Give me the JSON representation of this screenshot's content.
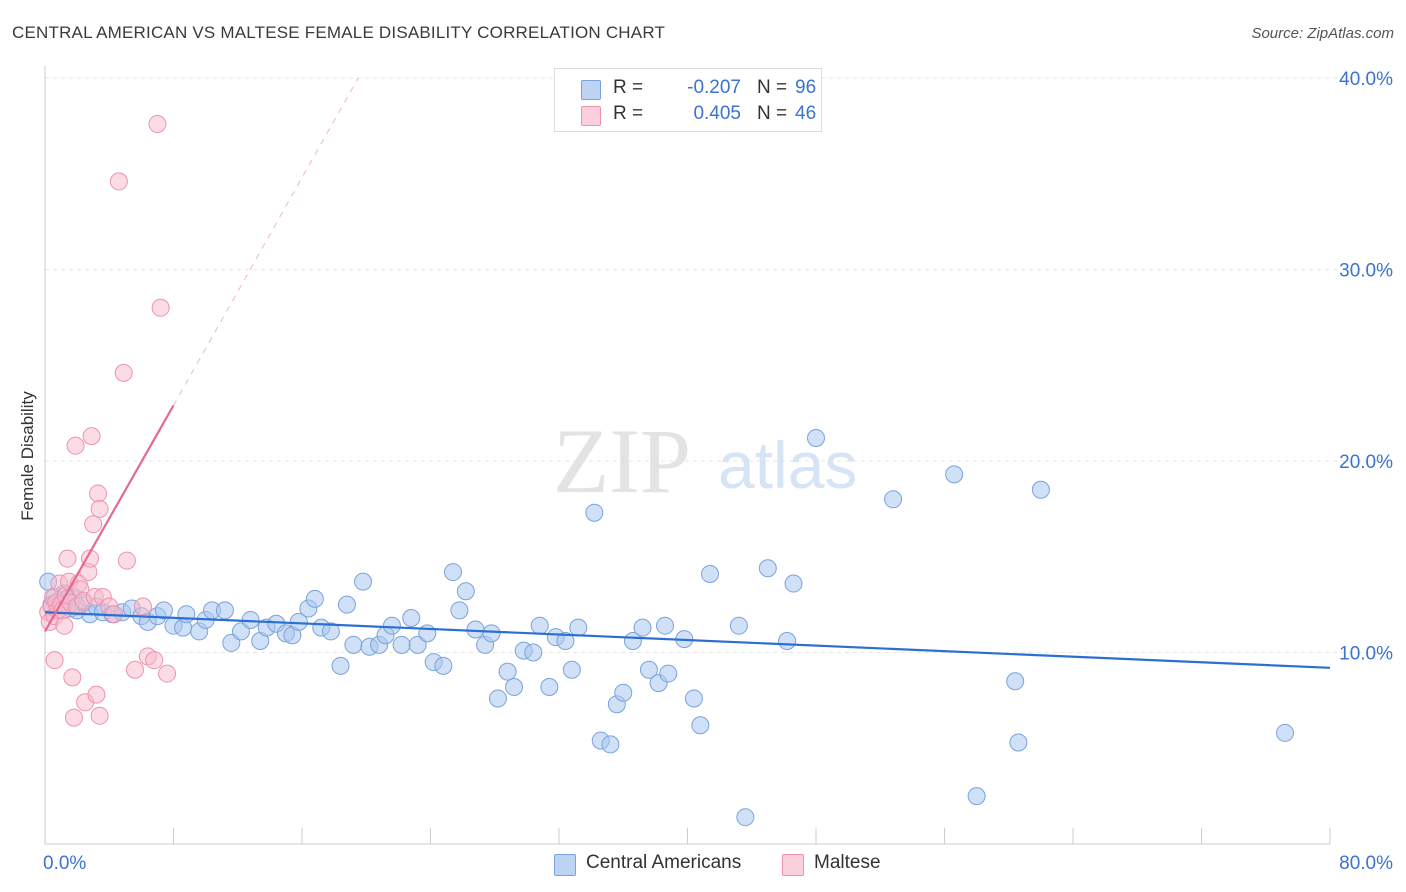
{
  "title": "CENTRAL AMERICAN VS MALTESE FEMALE DISABILITY CORRELATION CHART",
  "source": "Source: ZipAtlas.com",
  "watermark": {
    "zip": "ZIP",
    "atlas": "atlas"
  },
  "legend": {
    "r_label": "R =",
    "n_label": "N =",
    "central": {
      "r": "-0.207",
      "n": "96"
    },
    "maltese": {
      "r": "0.405",
      "n": "46"
    }
  },
  "colors": {
    "central_fill": "#a9c7ee",
    "central_stroke": "#7aa3dc",
    "central_line": "#2b6fd0",
    "maltese_fill": "#f7b9cb",
    "maltese_stroke": "#ee93ae",
    "maltese_line": "#e46a95",
    "tick_label": "#3b73d1"
  },
  "chart_data": {
    "type": "scatter",
    "title": "CENTRAL AMERICAN VS MALTESE FEMALE DISABILITY CORRELATION CHART",
    "xlabel": "",
    "ylabel": "Female Disability",
    "xlim": [
      0,
      80
    ],
    "ylim": [
      0,
      40
    ],
    "x_tick_labels": [
      "0.0%",
      "80.0%"
    ],
    "y_ticks": [
      10,
      20,
      30,
      40
    ],
    "y_tick_labels": [
      "10.0%",
      "20.0%",
      "30.0%",
      "40.0%"
    ],
    "grid": true,
    "legend_position": "top-center",
    "series": [
      {
        "name": "Central Americans",
        "r": -0.207,
        "n": 96,
        "trend": {
          "x": [
            0,
            80
          ],
          "y": [
            12.1,
            9.2
          ]
        },
        "points": [
          [
            0.2,
            13.7
          ],
          [
            0.4,
            12.5
          ],
          [
            0.6,
            12.9
          ],
          [
            0.8,
            12.4
          ],
          [
            1.0,
            12.6
          ],
          [
            1.2,
            13.1
          ],
          [
            1.4,
            12.8
          ],
          [
            1.6,
            12.3
          ],
          [
            1.8,
            12.9
          ],
          [
            2.0,
            12.2
          ],
          [
            2.4,
            12.6
          ],
          [
            2.8,
            12.0
          ],
          [
            3.2,
            12.4
          ],
          [
            3.6,
            12.1
          ],
          [
            4.2,
            12.0
          ],
          [
            4.8,
            12.1
          ],
          [
            5.4,
            12.3
          ],
          [
            6.0,
            11.9
          ],
          [
            6.4,
            11.6
          ],
          [
            7.0,
            11.9
          ],
          [
            7.4,
            12.2
          ],
          [
            8.0,
            11.4
          ],
          [
            8.6,
            11.3
          ],
          [
            8.8,
            12.0
          ],
          [
            9.6,
            11.1
          ],
          [
            10.0,
            11.7
          ],
          [
            10.4,
            12.2
          ],
          [
            11.2,
            12.2
          ],
          [
            11.6,
            10.5
          ],
          [
            12.2,
            11.1
          ],
          [
            12.8,
            11.7
          ],
          [
            13.4,
            10.6
          ],
          [
            13.8,
            11.3
          ],
          [
            14.4,
            11.5
          ],
          [
            15.0,
            11.0
          ],
          [
            15.4,
            10.9
          ],
          [
            15.8,
            11.6
          ],
          [
            16.4,
            12.3
          ],
          [
            16.8,
            12.8
          ],
          [
            17.2,
            11.3
          ],
          [
            17.8,
            11.1
          ],
          [
            18.4,
            9.3
          ],
          [
            18.8,
            12.5
          ],
          [
            19.2,
            10.4
          ],
          [
            19.8,
            13.7
          ],
          [
            20.2,
            10.3
          ],
          [
            20.8,
            10.4
          ],
          [
            21.2,
            10.9
          ],
          [
            21.6,
            11.4
          ],
          [
            22.2,
            10.4
          ],
          [
            22.8,
            11.8
          ],
          [
            23.2,
            10.4
          ],
          [
            23.8,
            11.0
          ],
          [
            24.2,
            9.5
          ],
          [
            24.8,
            9.3
          ],
          [
            25.4,
            14.2
          ],
          [
            25.8,
            12.2
          ],
          [
            26.2,
            13.2
          ],
          [
            26.8,
            11.2
          ],
          [
            27.4,
            10.4
          ],
          [
            27.8,
            11.0
          ],
          [
            28.2,
            7.6
          ],
          [
            28.8,
            9.0
          ],
          [
            29.2,
            8.2
          ],
          [
            29.8,
            10.1
          ],
          [
            30.4,
            10.0
          ],
          [
            30.8,
            11.4
          ],
          [
            31.4,
            8.2
          ],
          [
            31.8,
            10.8
          ],
          [
            32.4,
            10.6
          ],
          [
            32.8,
            9.1
          ],
          [
            33.2,
            11.3
          ],
          [
            34.2,
            17.3
          ],
          [
            34.6,
            5.4
          ],
          [
            35.2,
            5.2
          ],
          [
            35.6,
            7.3
          ],
          [
            36.0,
            7.9
          ],
          [
            36.6,
            10.6
          ],
          [
            37.2,
            11.3
          ],
          [
            37.6,
            9.1
          ],
          [
            38.2,
            8.4
          ],
          [
            38.6,
            11.4
          ],
          [
            38.8,
            8.9
          ],
          [
            39.8,
            10.7
          ],
          [
            40.4,
            7.6
          ],
          [
            40.8,
            6.2
          ],
          [
            41.4,
            14.1
          ],
          [
            43.2,
            11.4
          ],
          [
            43.6,
            1.4
          ],
          [
            45.0,
            14.4
          ],
          [
            46.2,
            10.6
          ],
          [
            46.6,
            13.6
          ],
          [
            48.0,
            21.2
          ],
          [
            52.8,
            18.0
          ],
          [
            56.6,
            19.3
          ],
          [
            58.0,
            2.5
          ],
          [
            60.4,
            8.5
          ],
          [
            60.6,
            5.3
          ],
          [
            62.0,
            18.5
          ],
          [
            77.2,
            5.8
          ]
        ]
      },
      {
        "name": "Maltese",
        "r": 0.405,
        "n": 46,
        "trend": {
          "x": [
            0,
            8
          ],
          "y": [
            11.1,
            22.9
          ]
        },
        "trend_extended": {
          "x": [
            8,
            19.5
          ],
          "y": [
            22.9,
            40.0
          ]
        },
        "points": [
          [
            0.2,
            12.1
          ],
          [
            0.3,
            11.6
          ],
          [
            0.4,
            12.4
          ],
          [
            0.5,
            12.9
          ],
          [
            0.6,
            11.9
          ],
          [
            0.7,
            12.6
          ],
          [
            0.8,
            12.2
          ],
          [
            0.9,
            13.6
          ],
          [
            1.0,
            12.5
          ],
          [
            1.1,
            12.2
          ],
          [
            1.2,
            11.4
          ],
          [
            1.3,
            13.0
          ],
          [
            1.4,
            14.9
          ],
          [
            1.5,
            13.7
          ],
          [
            1.6,
            12.6
          ],
          [
            1.7,
            8.7
          ],
          [
            1.8,
            6.6
          ],
          [
            1.9,
            20.8
          ],
          [
            2.0,
            12.4
          ],
          [
            2.1,
            13.6
          ],
          [
            2.2,
            13.3
          ],
          [
            2.4,
            12.7
          ],
          [
            2.5,
            7.4
          ],
          [
            2.7,
            14.2
          ],
          [
            2.8,
            14.9
          ],
          [
            2.9,
            21.3
          ],
          [
            3.0,
            16.7
          ],
          [
            3.1,
            12.9
          ],
          [
            3.2,
            7.8
          ],
          [
            3.3,
            18.3
          ],
          [
            3.4,
            17.5
          ],
          [
            3.6,
            12.9
          ],
          [
            4.0,
            12.4
          ],
          [
            4.3,
            12.0
          ],
          [
            5.1,
            14.8
          ],
          [
            5.6,
            9.1
          ],
          [
            6.1,
            12.4
          ],
          [
            6.4,
            9.8
          ],
          [
            6.8,
            9.6
          ],
          [
            7.0,
            37.6
          ],
          [
            7.2,
            28.0
          ],
          [
            7.6,
            8.9
          ],
          [
            0.6,
            9.6
          ],
          [
            3.4,
            6.7
          ],
          [
            4.6,
            34.6
          ],
          [
            4.9,
            24.6
          ]
        ]
      }
    ]
  }
}
